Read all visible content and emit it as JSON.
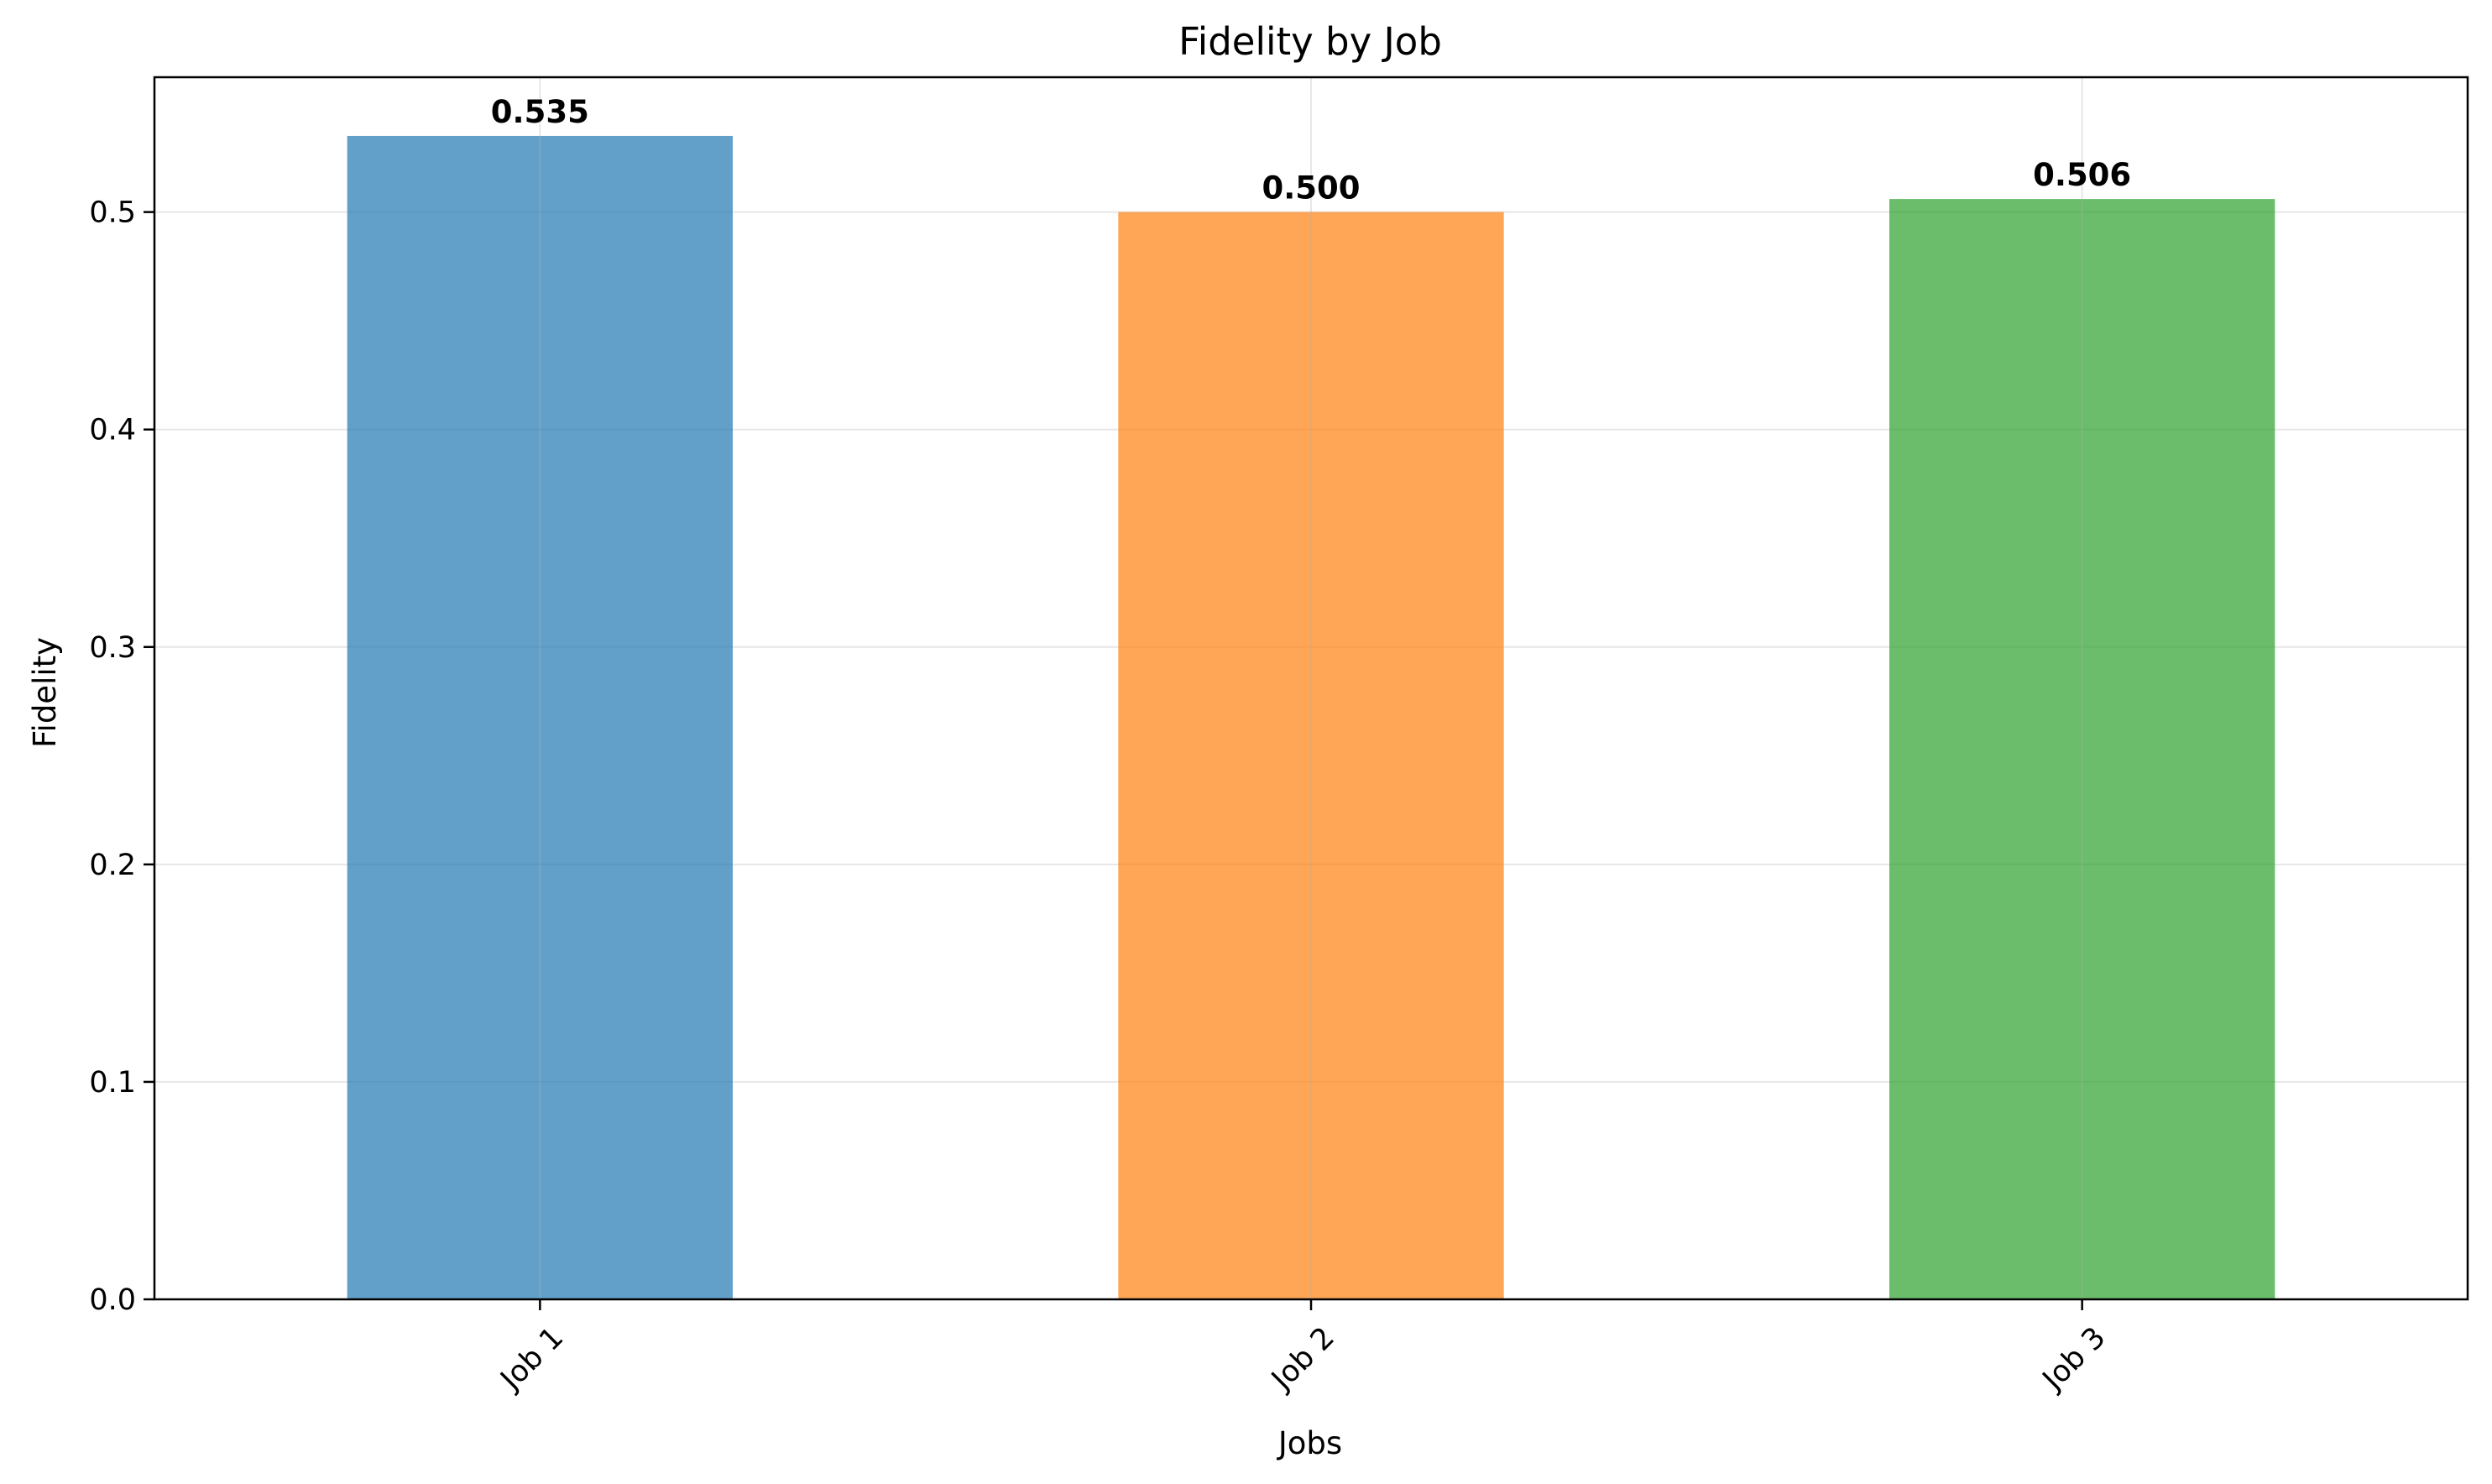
{
  "chart_data": {
    "type": "bar",
    "title": "Fidelity by Job",
    "xlabel": "Jobs",
    "ylabel": "Fidelity",
    "categories": [
      "Job 1",
      "Job 2",
      "Job 3"
    ],
    "values": [
      0.535,
      0.5,
      0.506
    ],
    "value_labels": [
      "0.535",
      "0.500",
      "0.506"
    ],
    "colors": [
      "#1f77b4",
      "#ff7f0e",
      "#2ca02c"
    ],
    "bar_opacity": 0.7,
    "ylim": [
      0,
      0.562
    ],
    "yticks": [
      0.0,
      0.1,
      0.2,
      0.3,
      0.4,
      0.5
    ],
    "ytick_labels": [
      "0.0",
      "0.1",
      "0.2",
      "0.3",
      "0.4",
      "0.5"
    ],
    "xtick_rotation_deg": 45,
    "grid": true,
    "legend": "none"
  }
}
